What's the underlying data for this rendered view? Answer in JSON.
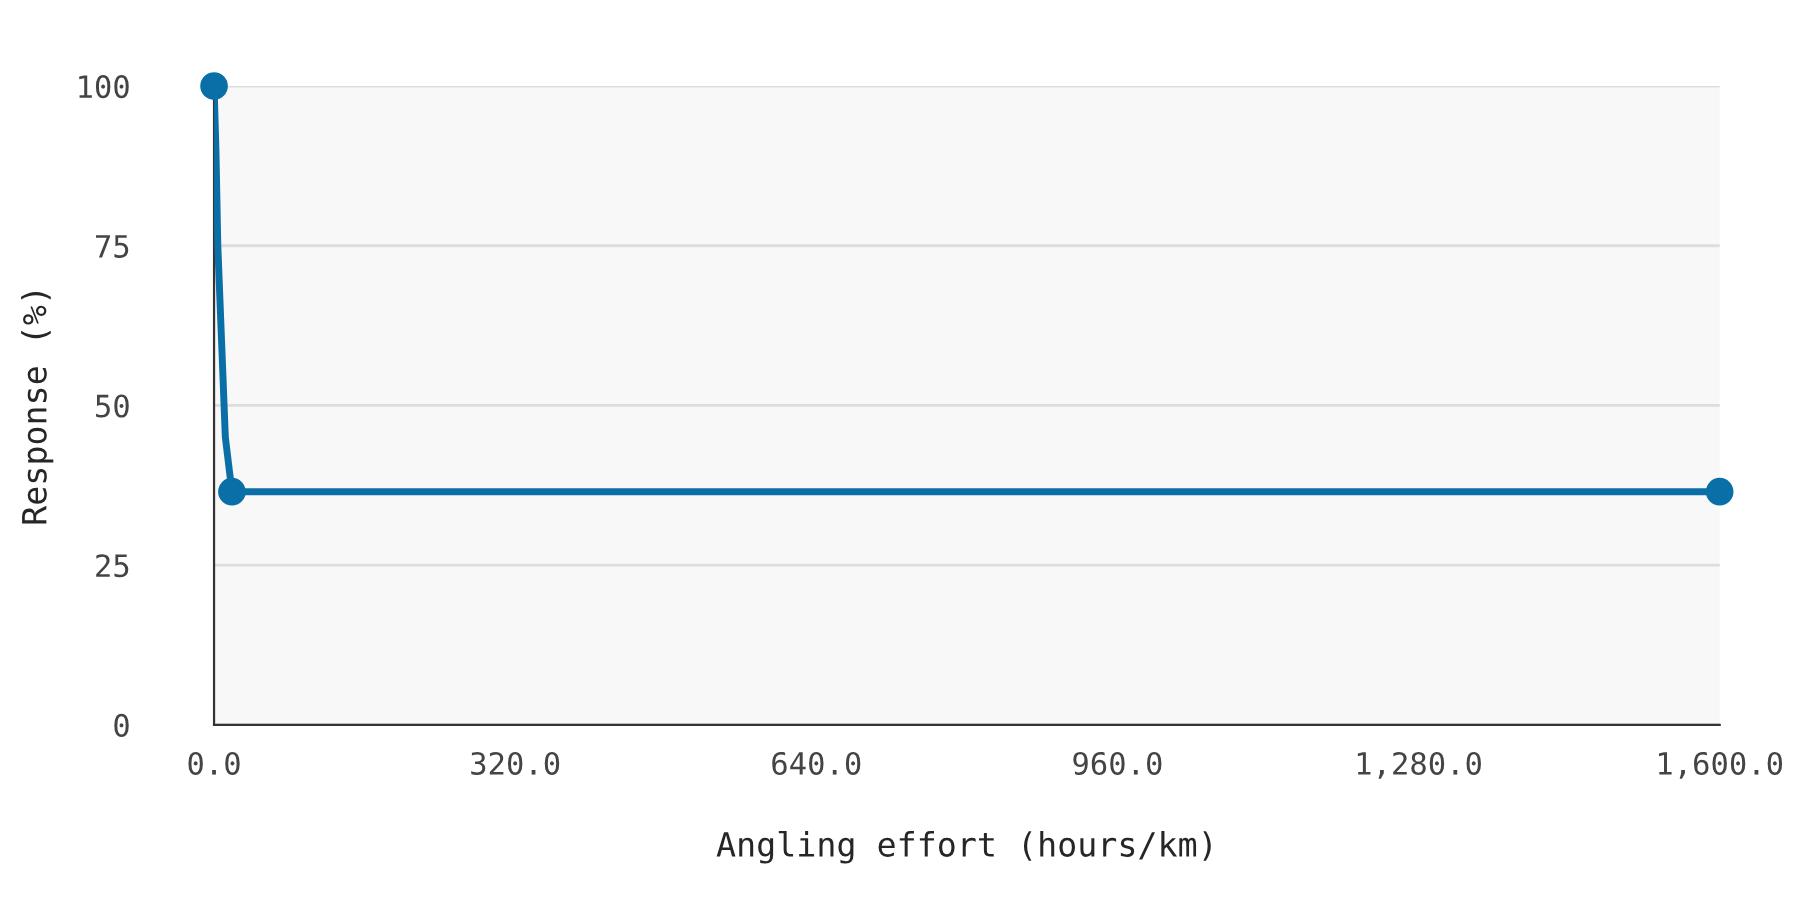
{
  "chart_data": {
    "type": "line",
    "xlabel": "Angling effort (hours/km)",
    "ylabel": "Response (%)",
    "series": [
      {
        "color": "#0a6fa6",
        "marker": "none",
        "x": [
          0,
          2,
          4,
          8,
          12,
          19,
          1600
        ],
        "values": [
          100,
          90,
          75,
          60,
          45,
          36.5,
          36.5
        ]
      },
      {
        "type": "scatter",
        "color": "#0a6fa6",
        "marker": "circle",
        "x": [
          0,
          19,
          1600
        ],
        "values": [
          100,
          36.5,
          36.5
        ]
      }
    ],
    "xlim": [
      0,
      1600
    ],
    "xticks": [
      {
        "value": 0,
        "label": "0.0"
      },
      {
        "value": 320,
        "label": "320.0"
      },
      {
        "value": 640,
        "label": "640.0"
      },
      {
        "value": 960,
        "label": "960.0"
      },
      {
        "value": 1280,
        "label": "1,280.0"
      },
      {
        "value": 1600,
        "label": "1,600.0"
      }
    ],
    "ylim": [
      0,
      100
    ],
    "yticks": [
      0,
      25,
      50,
      75,
      100
    ],
    "grid": "y",
    "legend": false
  }
}
